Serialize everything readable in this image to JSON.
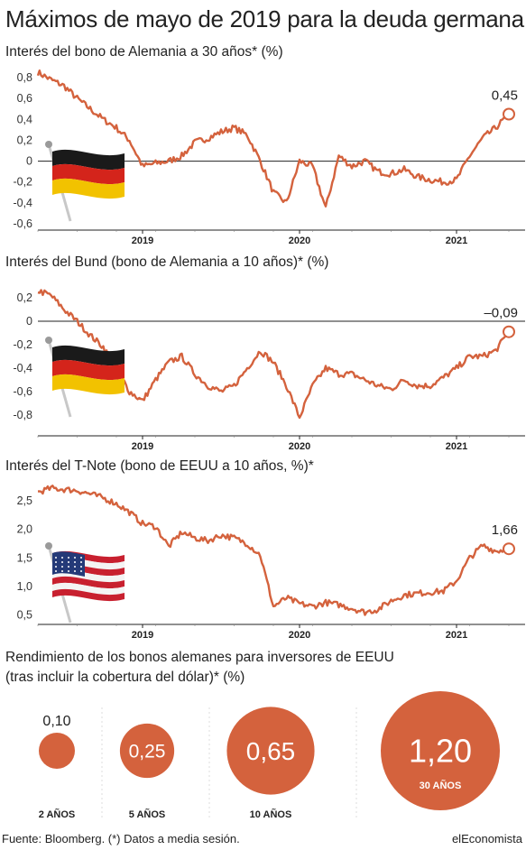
{
  "title": "Máximos de mayo de 2019 para la deuda germana",
  "footer": {
    "source": "Fuente: Bloomberg. (*) Datos a media sesión.",
    "brand": "elEconomista"
  },
  "colors": {
    "line": "#d4623d",
    "axis": "#222222",
    "text": "#222222"
  },
  "chart_data": [
    {
      "type": "line",
      "title": "Interés del bono de Alemania a 30 años* (%)",
      "icon": "germany-flag-icon",
      "ylim": [
        -0.6,
        0.8
      ],
      "yticks": [
        "0,8",
        "0,6",
        "0,4",
        "0,2",
        "0",
        "-0,2",
        "-0,4",
        "-0,6"
      ],
      "yticks_values": [
        0.8,
        0.6,
        0.4,
        0.2,
        0,
        -0.2,
        -0.4,
        -0.6
      ],
      "x_labels": [
        "2019",
        "2020",
        "2021"
      ],
      "end_value_label": "0,45",
      "x": [
        "2018-05",
        "2018-06",
        "2018-07",
        "2018-08",
        "2018-09",
        "2018-10",
        "2018-11",
        "2018-12",
        "2019-01",
        "2019-02",
        "2019-03",
        "2019-04",
        "2019-05",
        "2019-06",
        "2019-07",
        "2019-08",
        "2019-09",
        "2019-10",
        "2019-11",
        "2019-12",
        "2020-01",
        "2020-02",
        "2020-03",
        "2020-04",
        "2020-05",
        "2020-06",
        "2020-07",
        "2020-08",
        "2020-09",
        "2020-10",
        "2020-11",
        "2020-12",
        "2021-01",
        "2021-02",
        "2021-03",
        "2021-04",
        "2021-05"
      ],
      "values": [
        0.85,
        0.78,
        0.72,
        0.6,
        0.5,
        0.4,
        0.32,
        0.2,
        -0.05,
        -0.02,
        0.0,
        0.05,
        0.18,
        0.22,
        0.28,
        0.32,
        0.25,
        0.0,
        -0.3,
        -0.4,
        0.0,
        -0.05,
        -0.45,
        0.05,
        -0.05,
        0.0,
        -0.1,
        -0.12,
        -0.08,
        -0.15,
        -0.18,
        -0.2,
        -0.18,
        0.05,
        0.22,
        0.32,
        0.45
      ]
    },
    {
      "type": "line",
      "title": "Interés del Bund (bono de Alemania a 10 años)* (%)",
      "icon": "germany-flag-icon",
      "ylim": [
        -0.9,
        0.3
      ],
      "yticks": [
        "0,2",
        "0",
        "-0,2",
        "-0,4",
        "-0,6",
        "-0,8"
      ],
      "yticks_values": [
        0.2,
        0,
        -0.2,
        -0.4,
        -0.6,
        -0.8
      ],
      "x_labels": [
        "2019",
        "2020",
        "2021"
      ],
      "end_value_label": "–0,09",
      "x": [
        "2018-05",
        "2018-06",
        "2018-07",
        "2018-08",
        "2018-09",
        "2018-10",
        "2018-11",
        "2018-12",
        "2019-01",
        "2019-02",
        "2019-03",
        "2019-04",
        "2019-05",
        "2019-06",
        "2019-07",
        "2019-08",
        "2019-09",
        "2019-10",
        "2019-11",
        "2019-12",
        "2020-01",
        "2020-02",
        "2020-03",
        "2020-04",
        "2020-05",
        "2020-06",
        "2020-07",
        "2020-08",
        "2020-09",
        "2020-10",
        "2020-11",
        "2020-12",
        "2021-01",
        "2021-02",
        "2021-03",
        "2021-04",
        "2021-05"
      ],
      "values": [
        0.26,
        0.22,
        0.1,
        0.0,
        -0.12,
        -0.22,
        -0.4,
        -0.6,
        -0.68,
        -0.5,
        -0.35,
        -0.3,
        -0.45,
        -0.55,
        -0.6,
        -0.55,
        -0.4,
        -0.25,
        -0.35,
        -0.55,
        -0.82,
        -0.55,
        -0.4,
        -0.45,
        -0.45,
        -0.5,
        -0.55,
        -0.58,
        -0.5,
        -0.55,
        -0.55,
        -0.48,
        -0.4,
        -0.3,
        -0.3,
        -0.25,
        -0.09
      ]
    },
    {
      "type": "line",
      "title": "Interés del T-Note (bono de EEUU a 10 años, %)*",
      "icon": "usa-flag-icon",
      "ylim": [
        0.4,
        2.8
      ],
      "yticks": [
        "2,5",
        "2,0",
        "1,5",
        "1,0",
        "0,5"
      ],
      "yticks_values": [
        2.5,
        2.0,
        1.5,
        1.0,
        0.5
      ],
      "x_labels": [
        "2019",
        "2020",
        "2021"
      ],
      "end_value_label": "1,66",
      "x": [
        "2018-05",
        "2018-06",
        "2018-07",
        "2018-08",
        "2018-09",
        "2018-10",
        "2018-11",
        "2018-12",
        "2019-01",
        "2019-02",
        "2019-03",
        "2019-04",
        "2019-05",
        "2019-06",
        "2019-07",
        "2019-08",
        "2019-09",
        "2019-10",
        "2019-11",
        "2019-12",
        "2020-01",
        "2020-02",
        "2020-03",
        "2020-04",
        "2020-05",
        "2020-06",
        "2020-07",
        "2020-08",
        "2020-09",
        "2020-10",
        "2020-11",
        "2020-12",
        "2021-01",
        "2021-02",
        "2021-03",
        "2021-04",
        "2021-05"
      ],
      "values": [
        2.65,
        2.72,
        2.7,
        2.68,
        2.62,
        2.55,
        2.45,
        2.3,
        2.1,
        2.05,
        1.7,
        1.95,
        1.85,
        1.8,
        1.9,
        1.85,
        1.75,
        1.55,
        0.65,
        0.8,
        0.7,
        0.65,
        0.72,
        0.68,
        0.62,
        0.55,
        0.6,
        0.75,
        0.85,
        0.88,
        0.9,
        0.92,
        1.1,
        1.5,
        1.72,
        1.62,
        1.66
      ]
    },
    {
      "type": "bubble",
      "title": "Rendimiento de los bonos alemanes para inversores de EEUU",
      "subtitle": "(tras incluir la cobertura del dólar)* (%)",
      "categories": [
        "2 AÑOS",
        "5 AÑOS",
        "10 AÑOS",
        "30 AÑOS"
      ],
      "values": [
        0.1,
        0.25,
        0.65,
        1.2
      ],
      "value_labels": [
        "0,10",
        "0,25",
        "0,65",
        "1,20"
      ]
    }
  ]
}
